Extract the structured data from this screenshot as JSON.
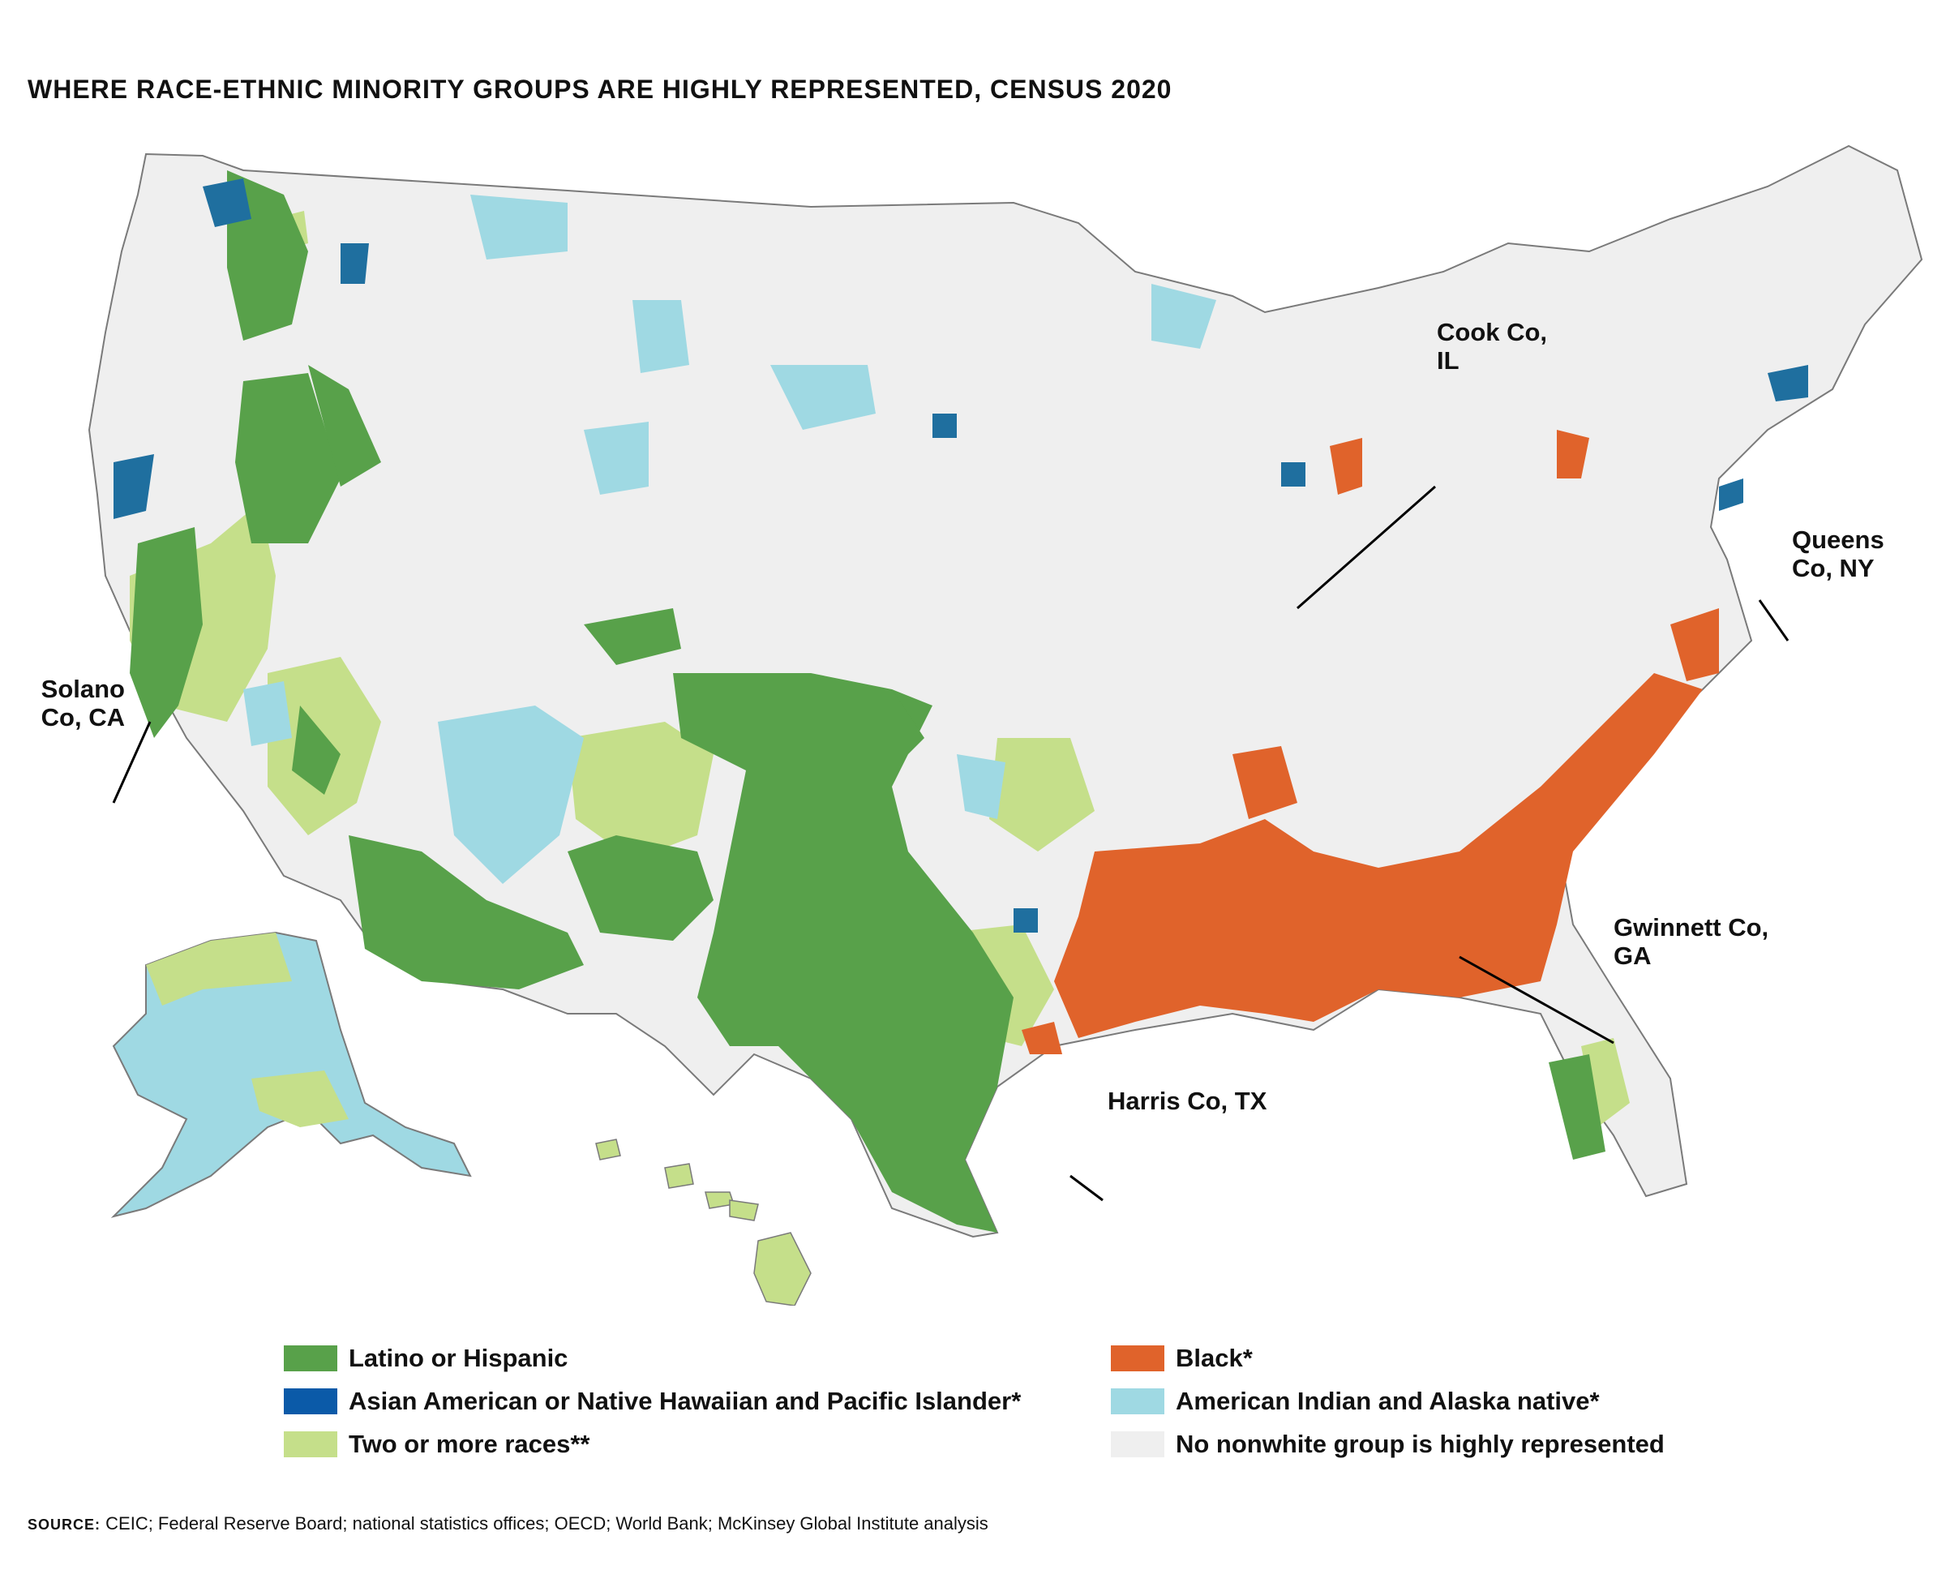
{
  "title": "WHERE RACE-ETHNIC MINORITY GROUPS ARE HIGHLY REPRESENTED, CENSUS 2020",
  "colors": {
    "latino": "#58a14a",
    "asian": "#1f6f9f",
    "two_or_more": "#c5df8a",
    "black": "#e0632b",
    "american_indian": "#9fd9e3",
    "none": "#efefef",
    "border": "#7a7a7a"
  },
  "callouts": {
    "cook": "Cook Co, IL",
    "queens": "Queens Co, NY",
    "solano": "Solano Co, CA",
    "gwinnett": "Gwinnett Co, GA",
    "harris": "Harris Co, TX"
  },
  "legend": [
    {
      "label": "Latino or Hispanic",
      "color_key": "latino"
    },
    {
      "label": "Asian American or Native Hawaiian and Pacific Islander*",
      "color_key": "asian"
    },
    {
      "label": "Two or more races**",
      "color_key": "two_or_more"
    },
    {
      "label": "Black*",
      "color_key": "black"
    },
    {
      "label": "American Indian and Alaska native*",
      "color_key": "american_indian"
    },
    {
      "label": "No nonwhite group is highly represented",
      "color_key": "none"
    }
  ],
  "source": {
    "label": "SOURCE:",
    "text": "CEIC; Federal Reserve Board; national statistics offices; OECD; World Bank; McKinsey Global Institute analysis"
  }
}
